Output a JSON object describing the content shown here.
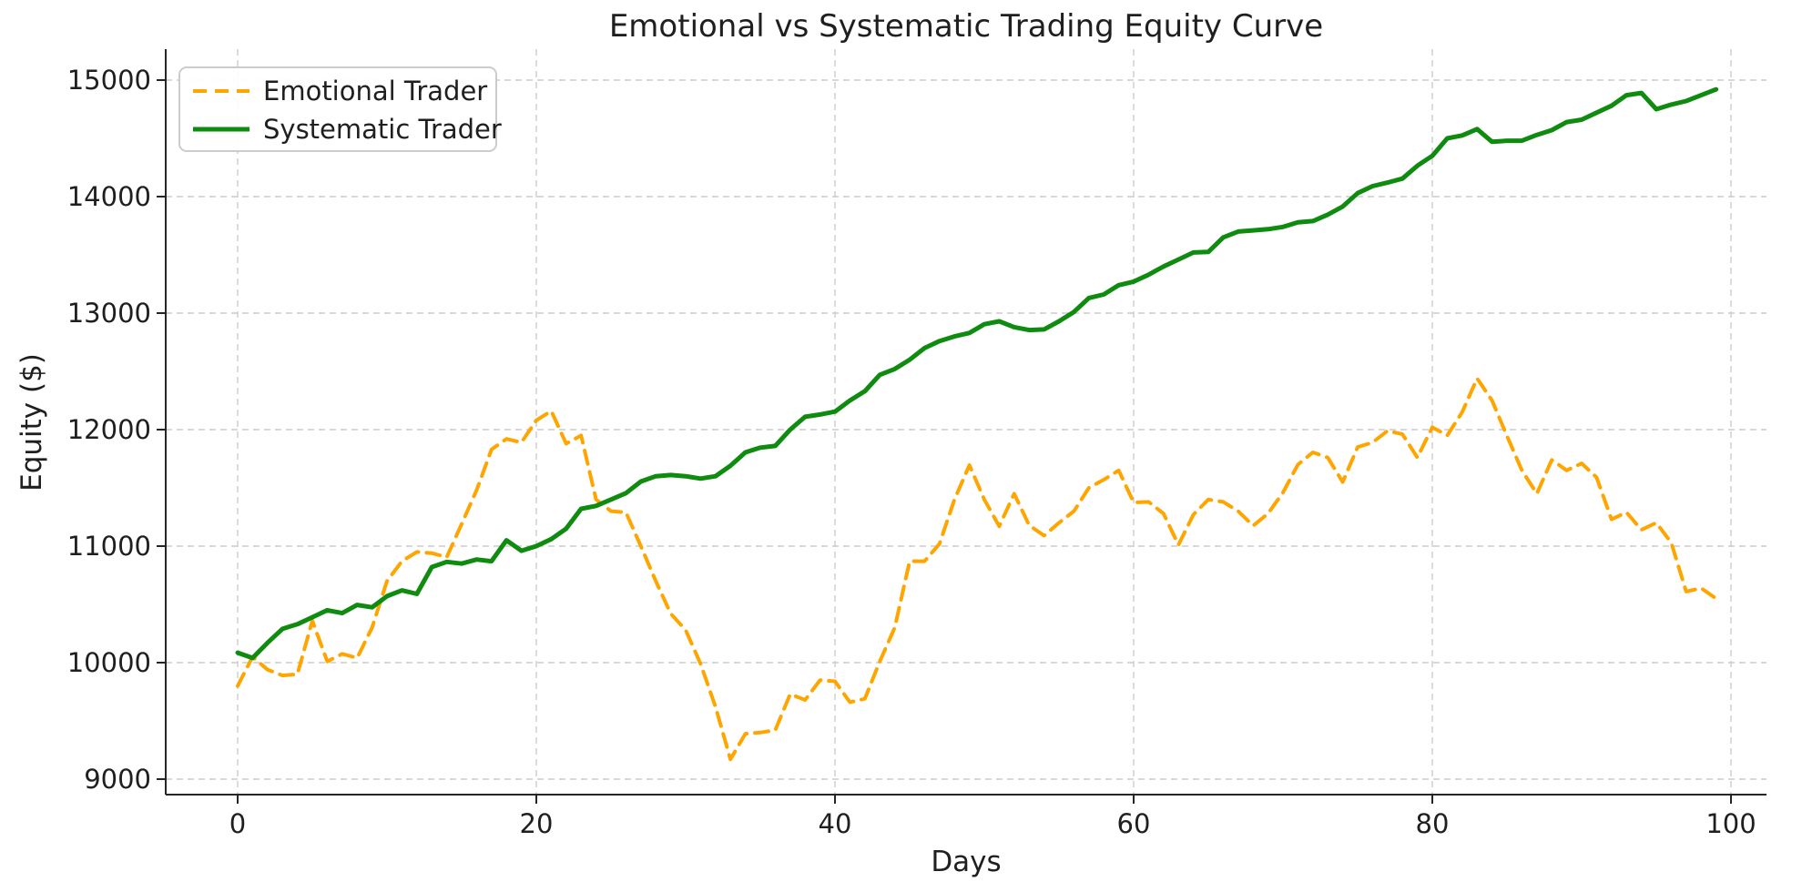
{
  "page": {
    "background": "#ffffff"
  },
  "chart": {
    "title": "Emotional vs Systematic Trading Equity Curve",
    "xlabel": "Days",
    "ylabel": "Equity ($)",
    "legend": {
      "position": "upper left",
      "items": [
        {
          "label": "Emotional Trader",
          "style": "dashed",
          "color": "#ffa500"
        },
        {
          "label": "Systematic Trader",
          "style": "solid",
          "color": "#0f8c0f"
        }
      ]
    },
    "colors": {
      "emotional": "#ffa500",
      "systematic": "#0f8c0f",
      "grid": "#cccccc",
      "spine": "#262626",
      "text": "#1f1f1f"
    }
  },
  "chart_data": {
    "type": "line",
    "title": "Emotional vs Systematic Trading Equity Curve",
    "xlabel": "Days",
    "ylabel": "Equity ($)",
    "xlim": [
      -5,
      103
    ],
    "ylim": [
      8850,
      15250
    ],
    "x_ticks": [
      0,
      20,
      40,
      60,
      80,
      100
    ],
    "y_ticks": [
      9000,
      10000,
      11000,
      12000,
      13000,
      14000,
      15000
    ],
    "grid": true,
    "grid_style": "dashed",
    "legend_position": "upper left",
    "x_start": 0,
    "x_step": 1,
    "n_points": 100,
    "series": [
      {
        "name": "Emotional Trader",
        "color": "#ffa500",
        "line_style": "dashed",
        "values": [
          9800,
          10050,
          9940,
          9890,
          9900,
          10360,
          10010,
          10075,
          10040,
          10300,
          10700,
          10870,
          10950,
          10940,
          10905,
          11190,
          11480,
          11830,
          11920,
          11890,
          12080,
          12160,
          11880,
          11950,
          11400,
          11300,
          11290,
          11000,
          10700,
          10420,
          10280,
          9990,
          9620,
          9170,
          9390,
          9400,
          9420,
          9730,
          9680,
          9850,
          9840,
          9660,
          9690,
          10010,
          10300,
          10870,
          10870,
          11020,
          11400,
          11695,
          11400,
          11170,
          11450,
          11180,
          11090,
          11200,
          11300,
          11500,
          11570,
          11650,
          11375,
          11380,
          11280,
          11010,
          11270,
          11400,
          11380,
          11300,
          11175,
          11280,
          11460,
          11700,
          11805,
          11760,
          11550,
          11850,
          11890,
          11990,
          11960,
          11760,
          12020,
          11950,
          12150,
          12440,
          12250,
          11945,
          11650,
          11450,
          11740,
          11650,
          11710,
          11590,
          11230,
          11290,
          11140,
          11200,
          11030,
          10610,
          10640,
          10550
        ]
      },
      {
        "name": "Systematic Trader",
        "color": "#0f8c0f",
        "line_style": "solid",
        "values": [
          10085,
          10040,
          10170,
          10290,
          10330,
          10390,
          10450,
          10425,
          10495,
          10475,
          10570,
          10620,
          10590,
          10820,
          10865,
          10850,
          10885,
          10870,
          11050,
          10960,
          11000,
          11060,
          11150,
          11320,
          11345,
          11400,
          11455,
          11555,
          11600,
          11610,
          11600,
          11580,
          11600,
          11690,
          11805,
          11845,
          11860,
          12000,
          12110,
          12130,
          12155,
          12250,
          12330,
          12470,
          12520,
          12600,
          12700,
          12760,
          12800,
          12830,
          12905,
          12930,
          12880,
          12855,
          12860,
          12930,
          13010,
          13130,
          13160,
          13240,
          13270,
          13330,
          13400,
          13460,
          13520,
          13525,
          13650,
          13700,
          13710,
          13720,
          13740,
          13780,
          13790,
          13845,
          13915,
          14030,
          14090,
          14120,
          14155,
          14265,
          14350,
          14500,
          14525,
          14580,
          14470,
          14480,
          14480,
          14530,
          14570,
          14640,
          14660,
          14720,
          14780,
          14870,
          14890,
          14750,
          14790,
          14820,
          14870,
          14920
        ]
      }
    ]
  }
}
